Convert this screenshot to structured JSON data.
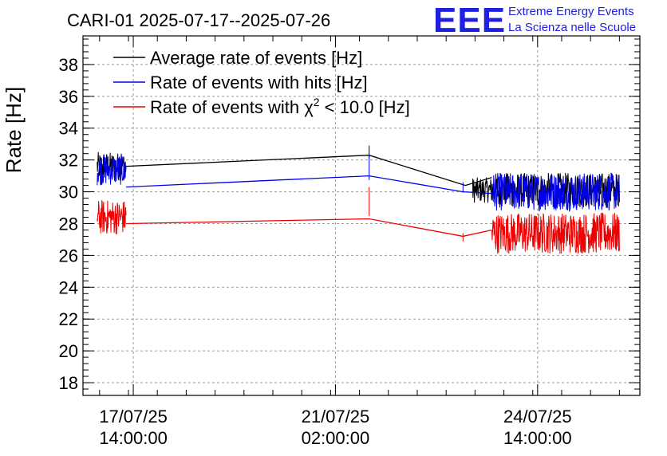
{
  "logo": {
    "mark": "EEE",
    "line1": "Extreme Energy Events",
    "line2": "La Scienza nelle Scuole",
    "color": "#2020e0"
  },
  "chart_data": {
    "type": "line",
    "title": "CARI-01 2025-07-17--2025-07-26",
    "xlabel": "",
    "ylabel": "Rate [Hz]",
    "ylim": [
      17.2,
      39.8
    ],
    "yticks": [
      18,
      20,
      22,
      24,
      26,
      28,
      30,
      32,
      34,
      36,
      38
    ],
    "x_unit": "hours since 2025-07-17 00:00",
    "xlim": [
      -6.9,
      224.5
    ],
    "xticks": [
      {
        "x": 14,
        "date": "17/07/25",
        "time": "14:00:00"
      },
      {
        "x": 98,
        "date": "21/07/25",
        "time": "02:00:00"
      },
      {
        "x": 182,
        "date": "24/07/25",
        "time": "14:00:00"
      }
    ],
    "grid": true,
    "legend_position": "top-left",
    "series": [
      {
        "name": "Average rate of events [Hz]",
        "legend_main": "Average rate of events [Hz]",
        "color": "#000000",
        "segments": [
          {
            "x": [
              -1,
              11
            ],
            "mean": 31.6,
            "spread": 0.9
          },
          {
            "x": [
              112,
              112
            ],
            "mean": 32.3,
            "spread": 0.6
          },
          {
            "x": [
              155,
              163
            ],
            "mean": 30.1,
            "spread": 0.8
          },
          {
            "x": [
              163,
              216
            ],
            "mean": 30.1,
            "spread": 1.1
          }
        ],
        "path": [
          [
            11,
            31.6
          ],
          [
            112,
            32.3
          ],
          [
            152,
            30.4
          ],
          [
            163,
            30.9
          ]
        ]
      },
      {
        "name": "Rate of events with hits [Hz]",
        "legend_main": "Rate of events with hits [Hz]",
        "color": "#0000ee",
        "segments": [
          {
            "x": [
              -1,
              11
            ],
            "mean": 31.4,
            "spread": 1.0
          },
          {
            "x": [
              112,
              112
            ],
            "mean": 31.1,
            "spread": 1.2
          },
          {
            "x": [
              151,
              151
            ],
            "mean": 30.1,
            "spread": 0.5
          },
          {
            "x": [
              163,
              216
            ],
            "mean": 30.0,
            "spread": 1.2
          }
        ],
        "path": [
          [
            11,
            30.3
          ],
          [
            112,
            31.0
          ],
          [
            151,
            30.0
          ],
          [
            163,
            29.9
          ]
        ]
      },
      {
        "name": "Rate of events with χ² < 10.0 [Hz]",
        "legend_main": "Rate of events with χ",
        "legend_sup": "2",
        "legend_rest": " < 10.0 [Hz]",
        "color": "#ee0000",
        "segments": [
          {
            "x": [
              -1,
              11
            ],
            "mean": 28.4,
            "spread": 1.1
          },
          {
            "x": [
              112,
              112
            ],
            "mean": 28.9,
            "spread": 1.4
          },
          {
            "x": [
              151,
              151
            ],
            "mean": 27.0,
            "spread": 0.4
          },
          {
            "x": [
              163,
              216
            ],
            "mean": 27.4,
            "spread": 1.3
          }
        ],
        "path": [
          [
            11,
            28.0
          ],
          [
            112,
            28.3
          ],
          [
            151,
            27.2
          ],
          [
            163,
            27.6
          ]
        ]
      }
    ]
  }
}
